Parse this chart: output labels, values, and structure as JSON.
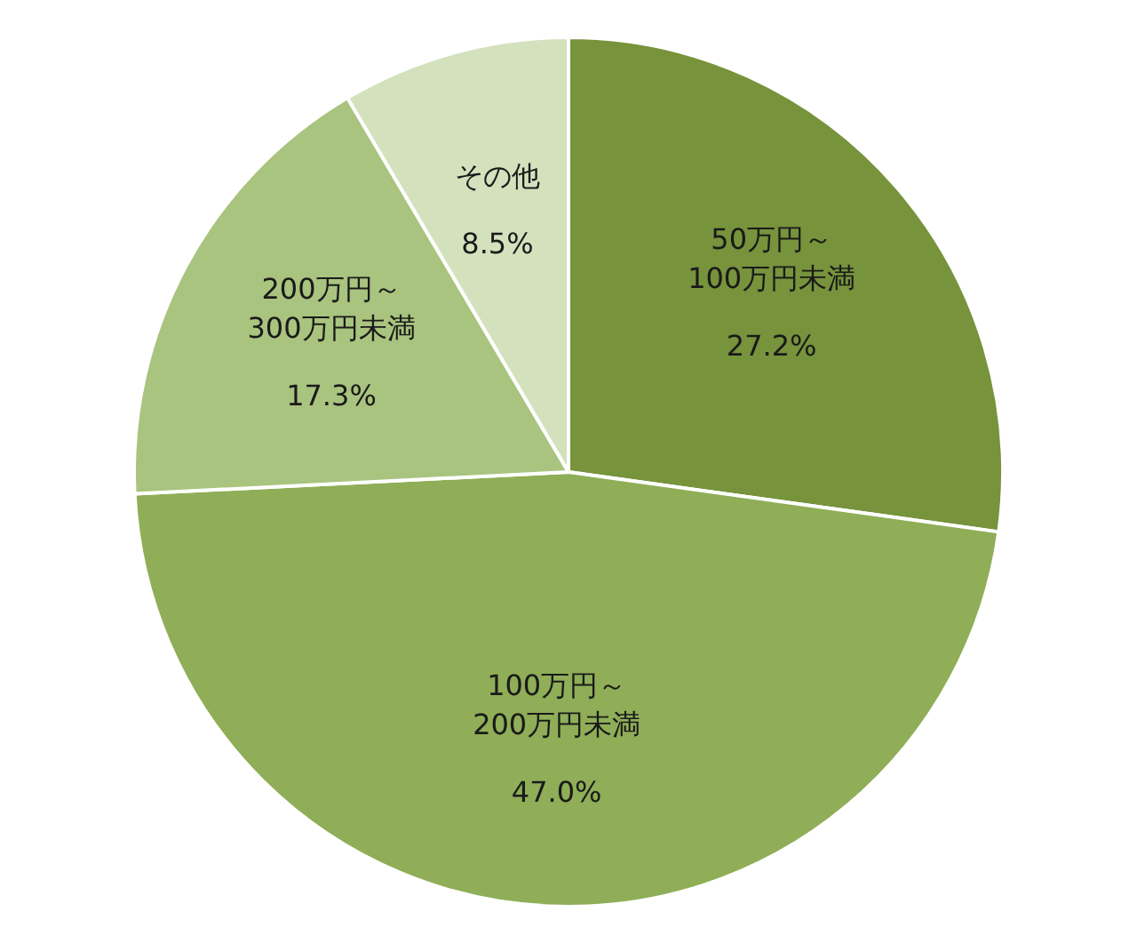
{
  "chart_data": {
    "type": "pie",
    "categories": [
      "50万円～\n100万円未満",
      "100万円～\n200万円未満",
      "200万円～\n300万円未満",
      "その他"
    ],
    "values": [
      27.2,
      47.0,
      17.3,
      8.5
    ],
    "value_labels": [
      "27.2%",
      "47.0%",
      "17.3%",
      "8.5%"
    ],
    "colors": [
      "#77933c",
      "#8fae57",
      "#a9c47f",
      "#d3e1bd"
    ],
    "legend": false
  }
}
